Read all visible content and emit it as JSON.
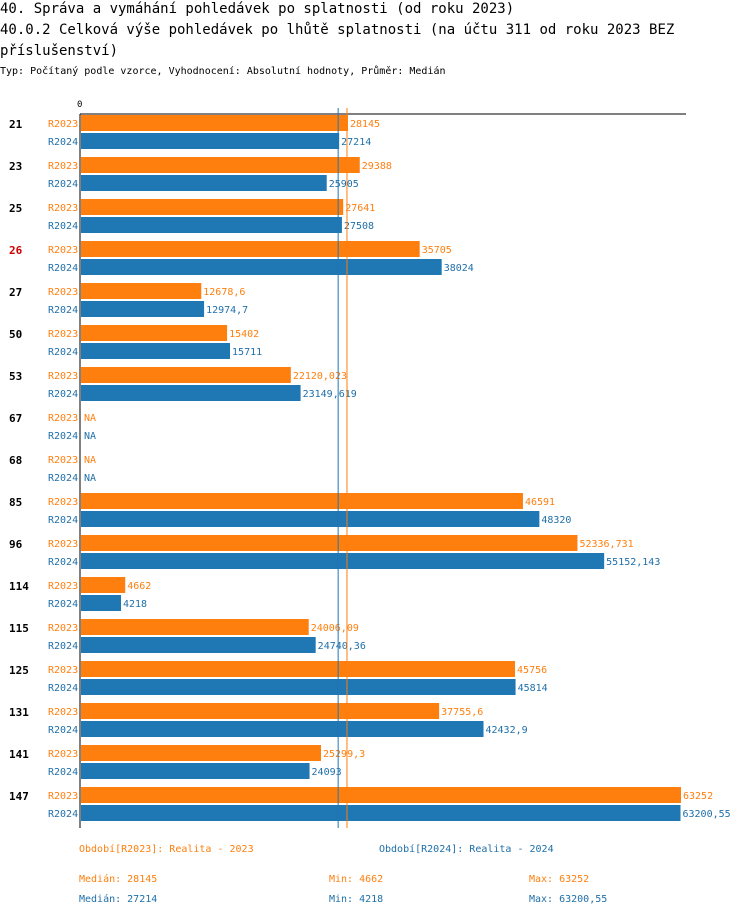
{
  "title_line1": "40. Správa a vymáhání pohledávek po splatnosti (od roku 2023)",
  "title_line2": "40.0.2 Celková výše pohledávek po lhůtě splatnosti (na účtu 311 od roku 2023 BEZ",
  "title_line3": "příslušenství)",
  "subtitle": "Typ: Počítaný podle vzorce, Vyhodnocení: Absolutní hodnoty, Průměr: Medián",
  "colors": {
    "r2023": "#ff7f0e",
    "r2024": "#1f77b4",
    "highlight": "#cc0000"
  },
  "chart_data": {
    "type": "bar",
    "orientation": "horizontal",
    "axis_zero_label": "0",
    "xlim": [
      0,
      63252
    ],
    "highlight_category": "26",
    "categories": [
      "21",
      "23",
      "25",
      "26",
      "27",
      "50",
      "53",
      "67",
      "68",
      "85",
      "96",
      "114",
      "115",
      "125",
      "131",
      "141",
      "147"
    ],
    "series": [
      {
        "name": "R2023",
        "values": [
          28145,
          29388,
          27641,
          35705,
          12678.6,
          15402,
          22120.023,
          null,
          null,
          46591,
          52336.731,
          4662,
          24006.09,
          45756,
          37755.6,
          25299.3,
          63252
        ],
        "labels": [
          "28145",
          "29388",
          "27641",
          "35705",
          "12678,6",
          "15402",
          "22120,023",
          "NA",
          "NA",
          "46591",
          "52336,731",
          "4662",
          "24006,09",
          "45756",
          "37755,6",
          "25299,3",
          "63252"
        ],
        "median": 28145
      },
      {
        "name": "R2024",
        "values": [
          27214,
          25905,
          27508,
          38024,
          12974.7,
          15711,
          23149.619,
          null,
          null,
          48320,
          55152.143,
          4218,
          24740.36,
          45814,
          42432.9,
          24093,
          63200.55
        ],
        "labels": [
          "27214",
          "25905",
          "27508",
          "38024",
          "12974,7",
          "15711",
          "23149,619",
          "NA",
          "NA",
          "48320",
          "55152,143",
          "4218",
          "24740,36",
          "45814",
          "42432,9",
          "24093",
          "63200,55"
        ],
        "median": 27214
      }
    ]
  },
  "legend": {
    "r2023": "Období[R2023]: Realita - 2023",
    "r2024": "Období[R2024]: Realita - 2024"
  },
  "stats": {
    "r2023": {
      "median": "Medián: 28145",
      "min": "Min: 4662",
      "max": "Max: 63252"
    },
    "r2024": {
      "median": "Medián: 27214",
      "min": "Min: 4218",
      "max": "Max: 63200,55"
    }
  }
}
